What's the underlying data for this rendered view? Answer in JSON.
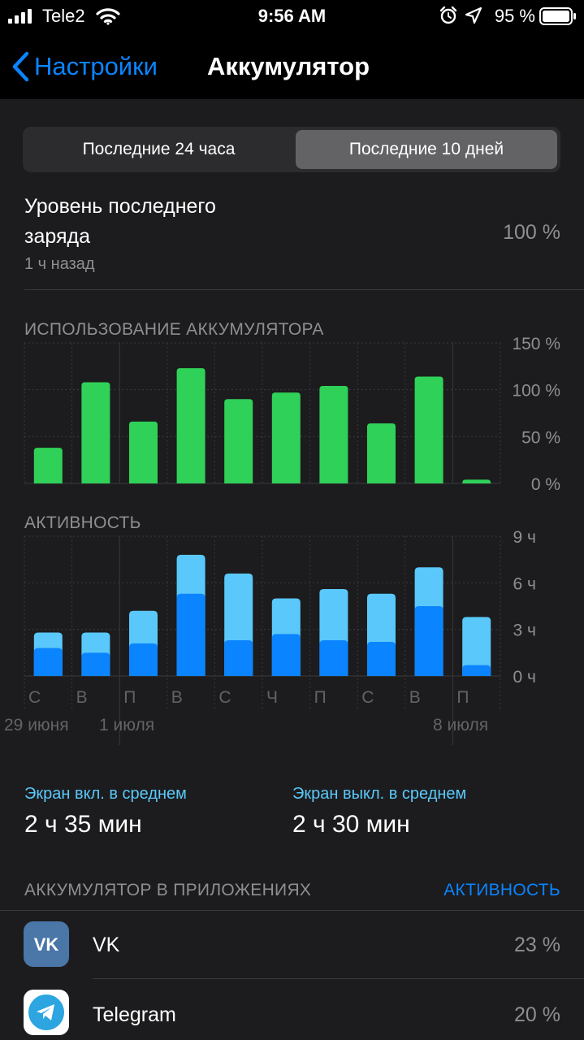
{
  "status": {
    "carrier": "Tele2",
    "time": "9:56 AM",
    "battery_percent": "95 %"
  },
  "nav": {
    "back_label": "Настройки",
    "title": "Аккумулятор"
  },
  "segments": {
    "left": "Последние 24 часа",
    "right": "Последние 10 дней",
    "selected": "right"
  },
  "last_charge": {
    "label": "Уровень последнего заряда",
    "ago": "1 ч назад",
    "value": "100 %"
  },
  "usage_header": "ИСПОЛЬЗОВАНИЕ АККУМУЛЯТОРА",
  "activity_header": "АКТИВНОСТЬ",
  "chart_data": [
    {
      "type": "bar",
      "title": "ИСПОЛЬЗОВАНИЕ АККУМУЛЯТОРА",
      "categories": [
        "С",
        "В",
        "П",
        "В",
        "С",
        "Ч",
        "П",
        "С",
        "В",
        "П"
      ],
      "values": [
        38,
        108,
        66,
        123,
        90,
        97,
        104,
        64,
        114,
        4
      ],
      "ylim": [
        0,
        150
      ],
      "yticks": [
        "150 %",
        "100 %",
        "50 %",
        "0 %"
      ],
      "color": "#30d158"
    },
    {
      "type": "bar",
      "title": "АКТИВНОСТЬ",
      "categories": [
        "С",
        "В",
        "П",
        "В",
        "С",
        "Ч",
        "П",
        "С",
        "В",
        "П"
      ],
      "series": [
        {
          "values": [
            1.8,
            1.5,
            2.1,
            5.3,
            2.3,
            2.7,
            2.3,
            2.2,
            4.5,
            0.7
          ],
          "color": "#0a84ff"
        },
        {
          "values": [
            1.0,
            1.3,
            2.1,
            2.5,
            4.3,
            2.3,
            3.3,
            3.1,
            2.5,
            3.1
          ],
          "color": "#5ac8fa"
        }
      ],
      "stacked": true,
      "ylim": [
        0,
        9
      ],
      "yticks": [
        "9 ч",
        "6 ч",
        "3 ч",
        "0 ч"
      ],
      "date_labels": [
        "29 июня",
        "1 июля",
        "8 июля"
      ],
      "grid": true
    }
  ],
  "screen_stats": {
    "on_label": "Экран вкл. в среднем",
    "on_value": "2 ч 35 мин",
    "off_label": "Экран выкл. в среднем",
    "off_value": "2 ч 30 мин"
  },
  "apps_section": {
    "header": "АККУМУЛЯТОР В ПРИЛОЖЕНИЯХ",
    "action": "АКТИВНОСТЬ",
    "items": [
      {
        "name": "VK",
        "percent": "23 %",
        "icon": "vk-icon",
        "color": "#4a76a8"
      },
      {
        "name": "Telegram",
        "percent": "20 %",
        "icon": "telegram-icon",
        "color": "#2ca5e0"
      }
    ]
  }
}
